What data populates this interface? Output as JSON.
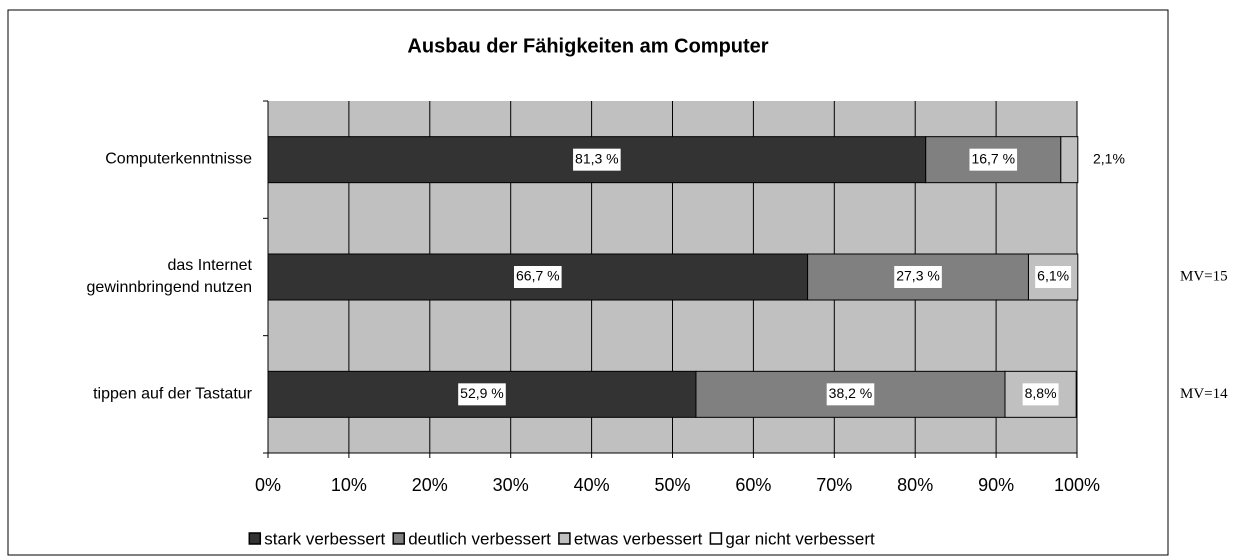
{
  "chart_data": {
    "type": "stacked_barh",
    "title": "Ausbau der Fähigkeiten am Computer",
    "categories": [
      "Computerkenntnisse",
      "das Internet\ngewinnbringend nutzen",
      "tippen auf der Tastatur"
    ],
    "side_labels": [
      null,
      "MV=15",
      "MV=14"
    ],
    "series": [
      {
        "name": "stark verbessert",
        "color": "#333333",
        "values": [
          81.3,
          66.7,
          52.9
        ],
        "value_labels": [
          "81,3 %",
          "66,7 %",
          "52,9 %"
        ]
      },
      {
        "name": "deutlich verbessert",
        "color": "#808080",
        "values": [
          16.7,
          27.3,
          38.2
        ],
        "value_labels": [
          "16,7 %",
          "27,3 %",
          "38,2 %"
        ]
      },
      {
        "name": "etwas verbessert",
        "color": "#c0c0c0",
        "values": [
          2.1,
          6.1,
          8.8
        ],
        "value_labels": [
          "2,1%",
          "6,1%",
          "8,8%"
        ]
      },
      {
        "name": "gar nicht verbessert",
        "color": "#ffffff",
        "values": [
          0,
          0,
          0
        ]
      }
    ],
    "xlim": [
      0,
      100
    ],
    "xticks": [
      {
        "value": 0,
        "label": "0%"
      },
      {
        "value": 10,
        "label": "10%"
      },
      {
        "value": 20,
        "label": "20%"
      },
      {
        "value": 30,
        "label": "30%"
      },
      {
        "value": 40,
        "label": "40%"
      },
      {
        "value": 50,
        "label": "50%"
      },
      {
        "value": 60,
        "label": "60%"
      },
      {
        "value": 70,
        "label": "70%"
      },
      {
        "value": 80,
        "label": "80%"
      },
      {
        "value": 90,
        "label": "90%"
      },
      {
        "value": 100,
        "label": "100%"
      }
    ],
    "grid": true,
    "legend": "bottom"
  }
}
